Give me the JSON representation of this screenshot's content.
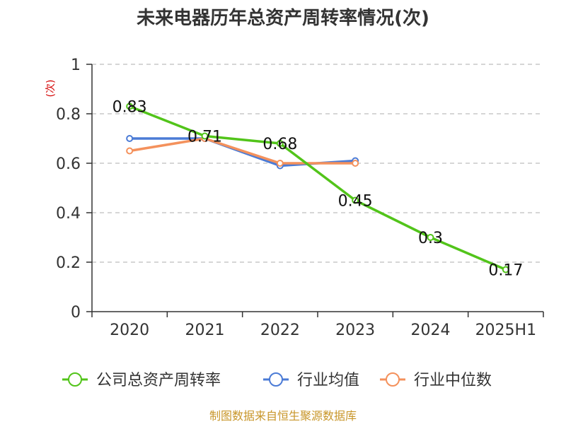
{
  "chart_data": {
    "type": "line",
    "title": "未来电器历年总资产周转率情况(次)",
    "ylabel": "(次)",
    "xlabel": "",
    "categories": [
      "2020",
      "2021",
      "2022",
      "2023",
      "2024",
      "2025H1"
    ],
    "ylim": [
      0,
      1
    ],
    "yticks": [
      0,
      0.2,
      0.4,
      0.6,
      0.8,
      1
    ],
    "ytick_labels": [
      "0",
      "0.2",
      "0.4",
      "0.6",
      "0.8",
      "1"
    ],
    "grid": true,
    "legend_position": "bottom",
    "series": [
      {
        "name": "公司总资产周转率",
        "color": "#52c41a",
        "values": [
          0.83,
          0.71,
          0.68,
          0.45,
          0.3,
          0.17
        ],
        "labels": [
          "0.83",
          "0.71",
          "0.68",
          "0.45",
          "0.3",
          "0.17"
        ]
      },
      {
        "name": "行业均值",
        "color": "#4b7bd6",
        "values": [
          0.7,
          0.7,
          0.59,
          0.61,
          null,
          null
        ]
      },
      {
        "name": "行业中位数",
        "color": "#f4915c",
        "values": [
          0.65,
          0.7,
          0.6,
          0.6,
          null,
          null
        ]
      }
    ]
  },
  "source_text": "制图数据来自恒生聚源数据库"
}
